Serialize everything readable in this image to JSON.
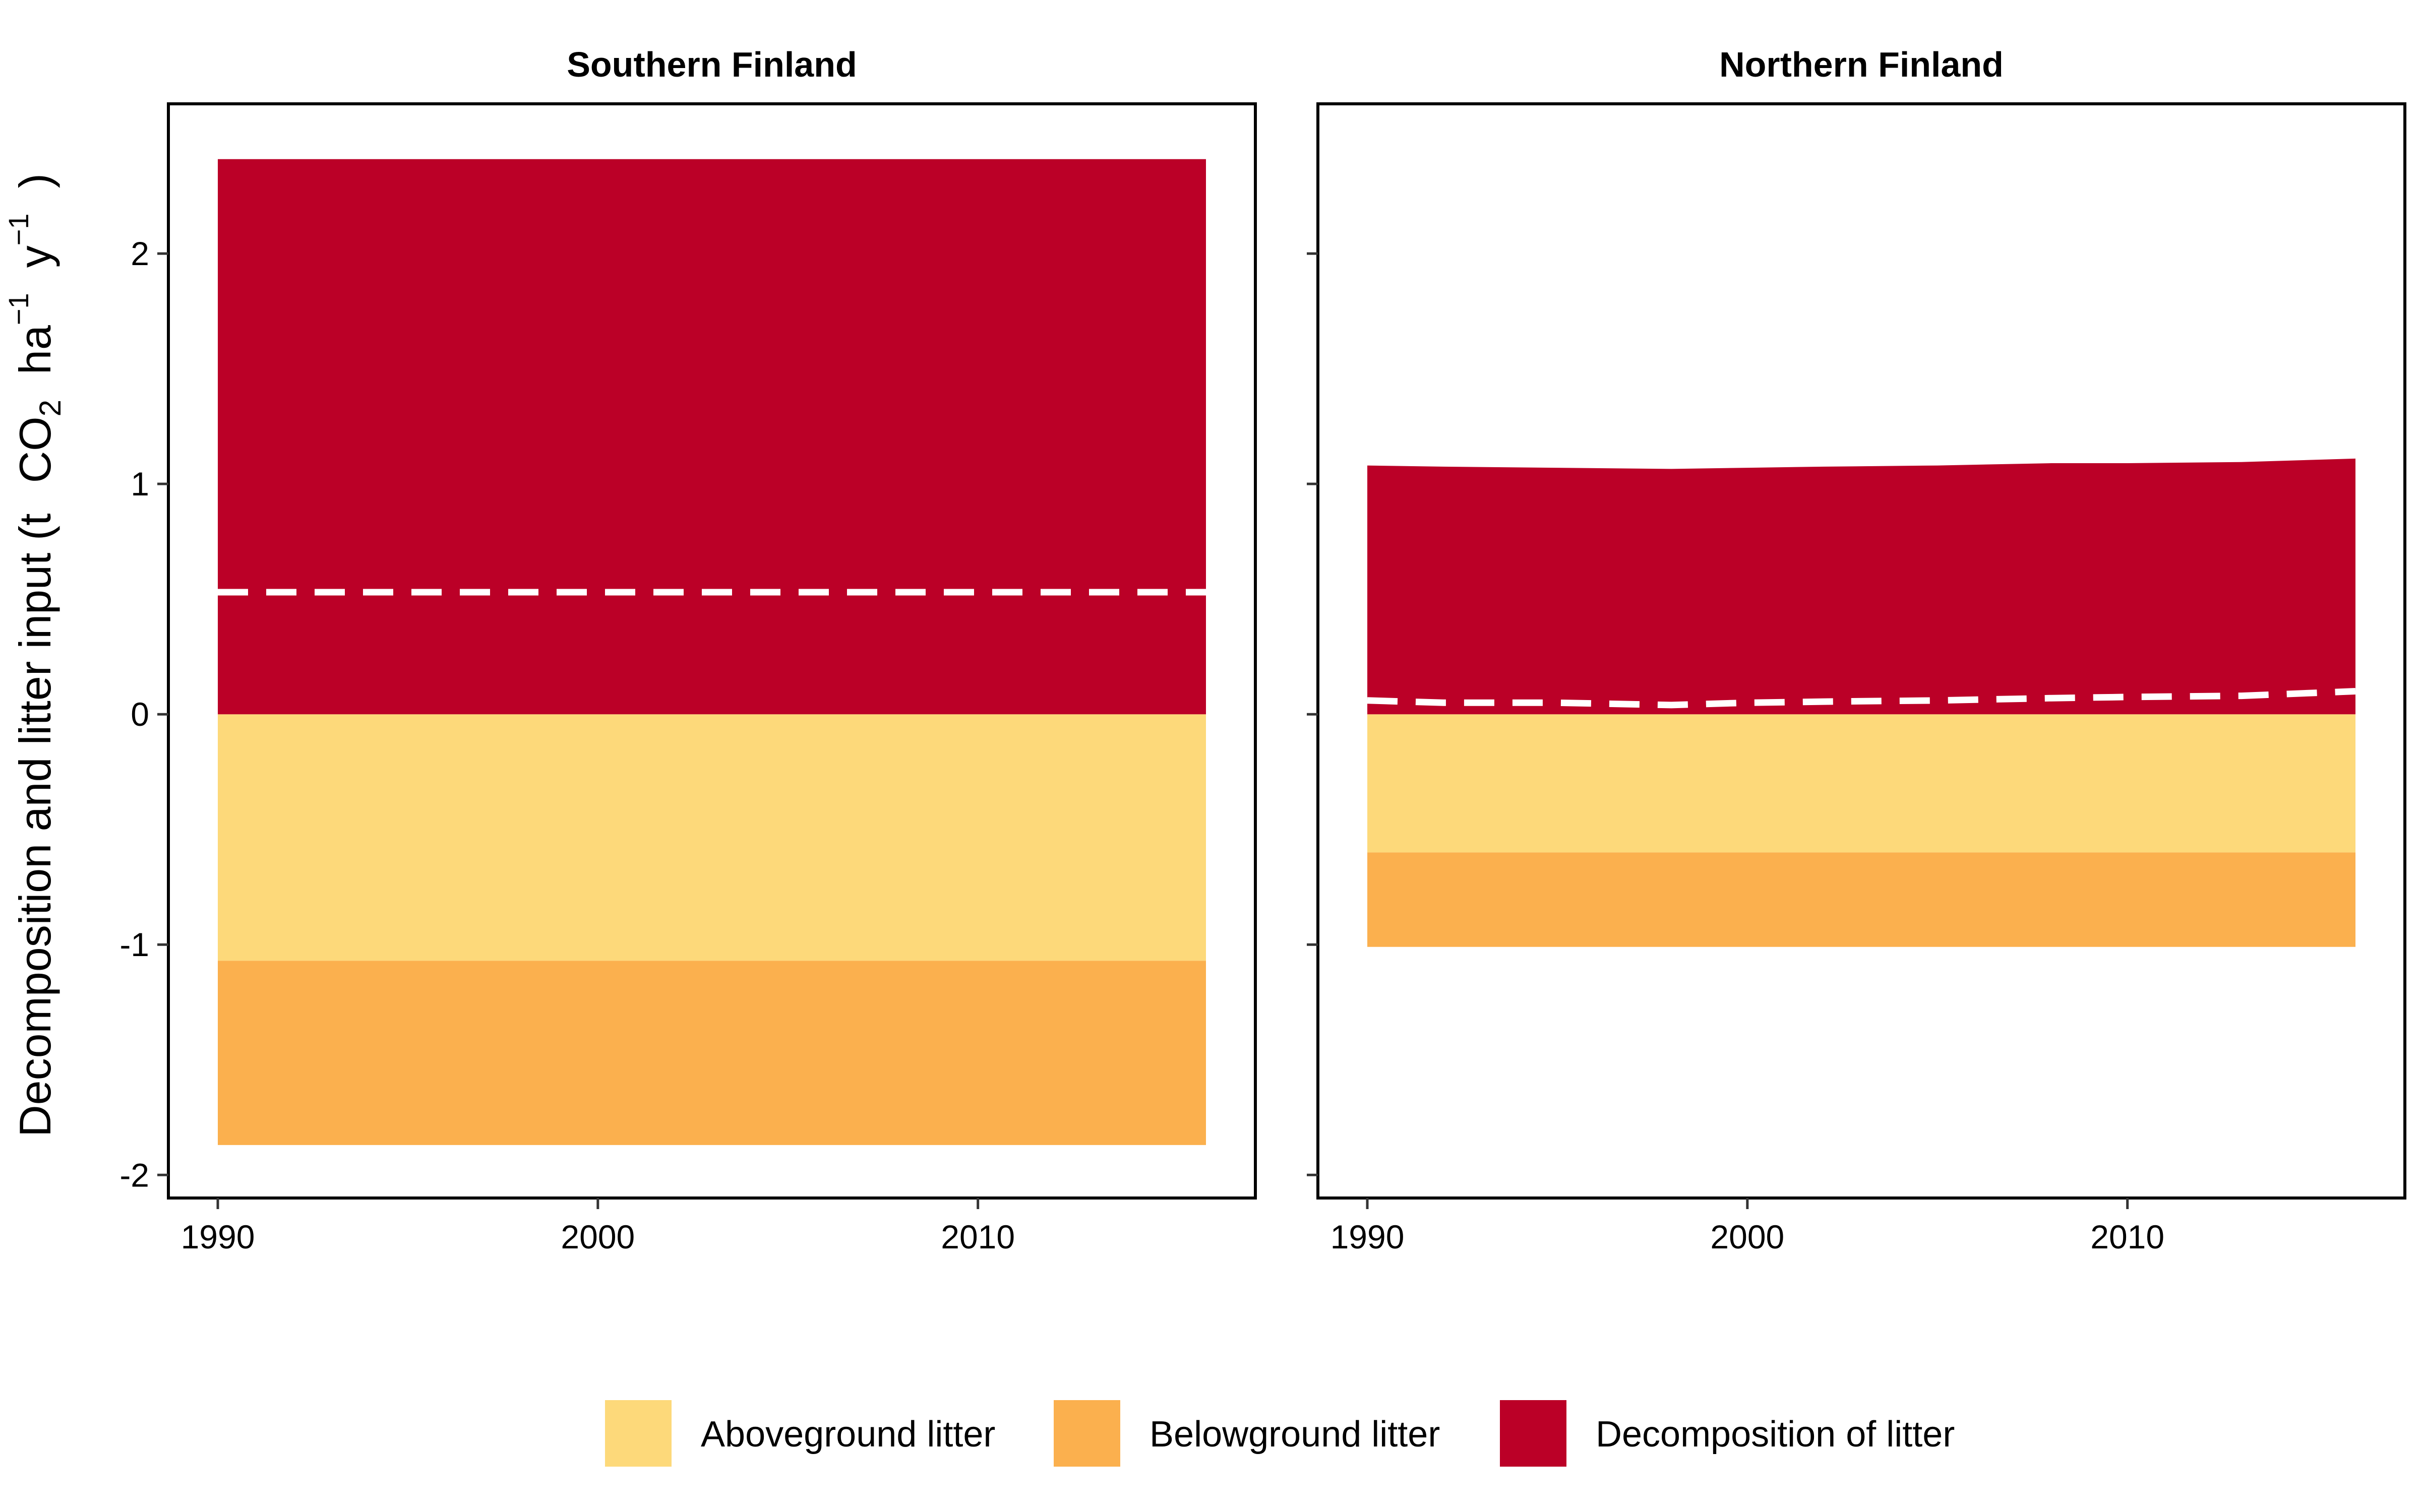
{
  "chart_data": {
    "type": "area",
    "stacked": true,
    "ylabel": {
      "prefix": "Decomposition and litter input (t",
      "co": "CO",
      "sub2": "2",
      "ha": "ha",
      "neg1": "−1",
      "y": "y",
      "close": ")"
    },
    "ylim": [
      -2.1,
      2.65
    ],
    "xlim": [
      1988.7,
      2017.3
    ],
    "yticks": [
      {
        "value": 2,
        "label": "2"
      },
      {
        "value": 1,
        "label": "1"
      },
      {
        "value": 0,
        "label": "0"
      },
      {
        "value": -1,
        "label": "-1"
      },
      {
        "value": -2,
        "label": "-2"
      }
    ],
    "xticks": [
      {
        "value": 1990,
        "label": "1990"
      },
      {
        "value": 2000,
        "label": "2000"
      },
      {
        "value": 2010,
        "label": "2010"
      }
    ],
    "legend": {
      "position": "bottom",
      "entries": [
        {
          "label": "Aboveground litter",
          "color": "#FDD97A"
        },
        {
          "label": "Belowground litter",
          "color": "#FBB04E"
        },
        {
          "label": "Decomposition of litter",
          "color": "#BB0027"
        }
      ]
    },
    "net_line": {
      "style": "dashed",
      "color": "#FFFFFF"
    },
    "panels": [
      {
        "title": "Southern Finland",
        "x": [
          1990,
          1995,
          2000,
          2005,
          2010,
          2016
        ],
        "series": [
          {
            "name": "Aboveground litter",
            "color": "#FDD97A",
            "values": [
              -1.07,
              -1.07,
              -1.07,
              -1.07,
              -1.07,
              -1.07
            ]
          },
          {
            "name": "Belowground litter",
            "color": "#FBB04E",
            "values": [
              -0.8,
              -0.8,
              -0.8,
              -0.8,
              -0.8,
              -0.8
            ]
          },
          {
            "name": "Decomposition of litter",
            "color": "#BB0027",
            "values": [
              2.41,
              2.41,
              2.41,
              2.41,
              2.41,
              2.41
            ]
          }
        ],
        "net_values": [
          0.53,
          0.53,
          0.53,
          0.53,
          0.53,
          0.53
        ]
      },
      {
        "title": "Northern Finland",
        "x": [
          1990,
          1992,
          1995,
          1998,
          2000,
          2002,
          2005,
          2008,
          2010,
          2013,
          2016
        ],
        "series": [
          {
            "name": "Aboveground litter",
            "color": "#FDD97A",
            "values": [
              -0.6,
              -0.6,
              -0.6,
              -0.6,
              -0.6,
              -0.6,
              -0.6,
              -0.6,
              -0.6,
              -0.6,
              -0.6
            ]
          },
          {
            "name": "Belowground litter",
            "color": "#FBB04E",
            "values": [
              -0.41,
              -0.41,
              -0.41,
              -0.41,
              -0.41,
              -0.41,
              -0.41,
              -0.41,
              -0.41,
              -0.41,
              -0.41
            ]
          },
          {
            "name": "Decomposition of litter",
            "color": "#BB0027",
            "values": [
              1.08,
              1.075,
              1.07,
              1.065,
              1.07,
              1.075,
              1.08,
              1.09,
              1.09,
              1.095,
              1.11
            ]
          }
        ],
        "net_values": [
          0.06,
          0.05,
          0.05,
          0.04,
          0.05,
          0.055,
          0.06,
          0.07,
          0.075,
          0.08,
          0.1
        ]
      }
    ]
  }
}
